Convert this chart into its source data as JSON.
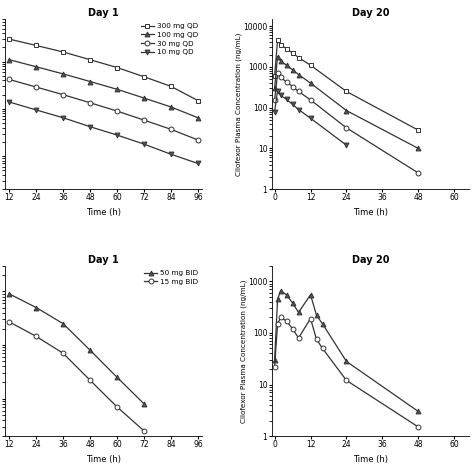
{
  "background": "#ffffff",
  "panel_TL": {
    "title": "Day 1",
    "xlabel": "Time (h)",
    "xticks": [
      12,
      24,
      36,
      48,
      60,
      72,
      84,
      96
    ],
    "xlim": [
      10,
      98
    ],
    "ylim": [
      2,
      8000
    ],
    "series": [
      {
        "label": "300 mg QD",
        "marker": "s",
        "mfc": "white",
        "x": [
          12,
          24,
          36,
          48,
          60,
          72,
          84,
          96
        ],
        "y": [
          3000,
          2200,
          1600,
          1100,
          750,
          480,
          300,
          150
        ]
      },
      {
        "label": "100 mg QD",
        "marker": "^",
        "mfc": "#555555",
        "x": [
          12,
          24,
          36,
          48,
          60,
          72,
          84,
          96
        ],
        "y": [
          1100,
          780,
          550,
          380,
          260,
          170,
          110,
          65
        ]
      },
      {
        "label": "30 mg QD",
        "marker": "o",
        "mfc": "white",
        "x": [
          12,
          24,
          36,
          48,
          60,
          72,
          84,
          96
        ],
        "y": [
          420,
          290,
          200,
          135,
          90,
          58,
          37,
          22
        ]
      },
      {
        "label": "10 mg QD",
        "marker": "v",
        "mfc": "#555555",
        "x": [
          12,
          24,
          36,
          48,
          60,
          72,
          84,
          96
        ],
        "y": [
          140,
          95,
          65,
          42,
          28,
          18,
          11,
          7
        ]
      }
    ],
    "legend_markers": [
      "s",
      "^",
      "o",
      "v"
    ],
    "legend_mfc": [
      "white",
      "#555555",
      "white",
      "#555555"
    ]
  },
  "panel_TR": {
    "title": "Day 20",
    "xlabel": "Time (h)",
    "ylabel": "Cilofexor Plasma Concentration (ng/mL)",
    "xticks": [
      0,
      12,
      24,
      36,
      48,
      60
    ],
    "xlim": [
      -1,
      65
    ],
    "ylim": [
      1,
      15000
    ],
    "series": [
      {
        "label": "300 mg QD",
        "marker": "s",
        "mfc": "white",
        "x": [
          0,
          1,
          2,
          4,
          6,
          8,
          12,
          24,
          48
        ],
        "y": [
          600,
          4500,
          3500,
          2800,
          2200,
          1700,
          1100,
          250,
          28
        ]
      },
      {
        "label": "100 mg QD",
        "marker": "^",
        "mfc": "#555555",
        "x": [
          0,
          1,
          2,
          4,
          6,
          8,
          12,
          24,
          48
        ],
        "y": [
          300,
          1800,
          1400,
          1100,
          850,
          650,
          400,
          85,
          10
        ]
      },
      {
        "label": "30 mg QD",
        "marker": "o",
        "mfc": "white",
        "x": [
          0,
          1,
          2,
          4,
          6,
          8,
          12,
          24,
          48
        ],
        "y": [
          150,
          700,
          550,
          430,
          330,
          250,
          155,
          32,
          2.5
        ]
      },
      {
        "label": "10 mg QD",
        "marker": "v",
        "mfc": "#555555",
        "x": [
          0,
          1,
          2,
          4,
          6,
          8,
          12,
          24
        ],
        "y": [
          80,
          260,
          200,
          160,
          120,
          90,
          55,
          12
        ]
      }
    ]
  },
  "panel_BL": {
    "title": "Day 1",
    "xlabel": "Time (h)",
    "xticks": [
      12,
      24,
      36,
      48,
      60,
      72,
      84,
      96
    ],
    "xlim": [
      10,
      98
    ],
    "ylim": [
      2,
      3000
    ],
    "series": [
      {
        "label": "50 mg BID",
        "marker": "^",
        "mfc": "#555555",
        "x": [
          12,
          24,
          36,
          48,
          60,
          72
        ],
        "y": [
          900,
          500,
          250,
          80,
          25,
          8
        ]
      },
      {
        "label": "15 mg BID",
        "marker": "o",
        "mfc": "white",
        "x": [
          12,
          24,
          36,
          48,
          60,
          72
        ],
        "y": [
          270,
          145,
          70,
          22,
          7,
          2.5
        ]
      }
    ],
    "legend_markers": [
      "^",
      "o"
    ],
    "legend_mfc": [
      "#555555",
      "white"
    ]
  },
  "panel_BR": {
    "title": "Day 20",
    "xlabel": "Time (h)",
    "ylabel": "Cilofexor Plasma Concentration (ng/mL)",
    "xticks": [
      0,
      12,
      24,
      36,
      48,
      60
    ],
    "xlim": [
      -1,
      65
    ],
    "ylim": [
      1,
      2000
    ],
    "series": [
      {
        "label": "50 mg BID",
        "marker": "^",
        "mfc": "#555555",
        "x": [
          0,
          1,
          2,
          4,
          6,
          8,
          12,
          14,
          16,
          24,
          48
        ],
        "y": [
          30,
          450,
          650,
          550,
          380,
          250,
          550,
          220,
          150,
          28,
          3
        ]
      },
      {
        "label": "15 mg BID",
        "marker": "o",
        "mfc": "white",
        "x": [
          0,
          1,
          2,
          4,
          6,
          8,
          12,
          14,
          16,
          24,
          48
        ],
        "y": [
          22,
          150,
          200,
          170,
          120,
          80,
          190,
          75,
          50,
          12,
          1.5
        ]
      }
    ]
  }
}
